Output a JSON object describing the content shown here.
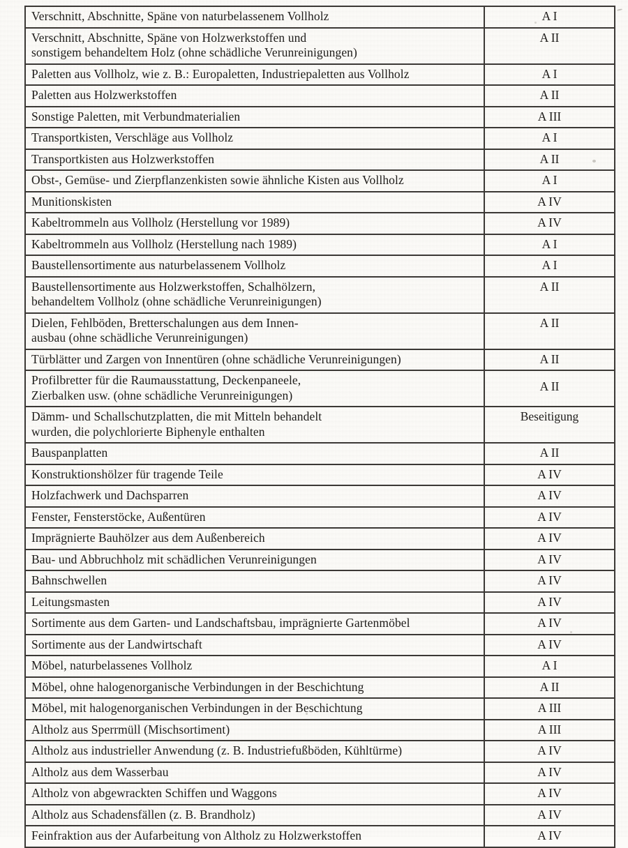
{
  "page": {
    "background": "#fcfbf8",
    "ink": "#1e1c1a",
    "border_color": "#3b3835"
  },
  "table": {
    "columns": [
      "description",
      "category"
    ],
    "rows": [
      {
        "text": "Verschnitt, Abschnitte, Späne von naturbelassenem Vollholz",
        "category": "A I"
      },
      {
        "text": "Verschnitt, Abschnitte, Späne von Holzwerkstoffen und\nsonstigem behandeltem Holz (ohne schädliche Verunreinigungen)",
        "category": "A II"
      },
      {
        "text": "Paletten aus Vollholz, wie z. B.: Europaletten, Industriepaletten aus Vollholz",
        "category": "A I"
      },
      {
        "text": "Paletten aus Holzwerkstoffen",
        "category": "A II"
      },
      {
        "text": "Sonstige Paletten, mit Verbundmaterialien",
        "category": "A III"
      },
      {
        "text": "Transportkisten, Verschläge aus Vollholz",
        "category": "A I"
      },
      {
        "text": "Transportkisten aus Holzwerkstoffen",
        "category": "A II"
      },
      {
        "text": "Obst-, Gemüse- und Zierpflanzenkisten sowie ähnliche Kisten aus Vollholz",
        "category": "A I"
      },
      {
        "text": "Munitionskisten",
        "category": "A IV"
      },
      {
        "text": "Kabeltrommeln aus Vollholz (Herstellung vor 1989)",
        "category": "A IV"
      },
      {
        "text": "Kabeltrommeln aus Vollholz (Herstellung nach 1989)",
        "category": "A I"
      },
      {
        "text": "Baustellensortimente aus naturbelassenem Vollholz",
        "category": "A I"
      },
      {
        "text": "Baustellensortimente aus Holzwerkstoffen, Schalhölzern,\nbehandeltem Vollholz (ohne schädliche Verunreinigungen)",
        "category": "A II"
      },
      {
        "text": "Dielen, Fehlböden, Bretterschalungen aus dem Innen-\nausbau (ohne schädliche Verunreinigungen)",
        "category": "A II"
      },
      {
        "text": "Türblätter und Zargen von Innentüren (ohne schädliche Verunreinigungen)",
        "category": "A II"
      },
      {
        "text": "Profilbretter für die Raumausstattung, Deckenpaneele,\nZierbalken usw. (ohne schädliche Verunreinigungen)",
        "category": "A II",
        "category_middle": true
      },
      {
        "text": "Dämm- und Schallschutzplatten, die mit Mitteln behandelt\nwurden, die polychlorierte Biphenyle enthalten",
        "category": "Beseitigung"
      },
      {
        "text": "Bauspanplatten",
        "category": "A II"
      },
      {
        "text": "Konstruktionshölzer für tragende Teile",
        "category": "A IV"
      },
      {
        "text": "Holzfachwerk und Dachsparren",
        "category": "A IV"
      },
      {
        "text": "Fenster, Fensterstöcke, Außentüren",
        "category": "A IV"
      },
      {
        "text": "Imprägnierte Bauhölzer aus dem Außenbereich",
        "category": "A IV"
      },
      {
        "text": "Bau- und Abbruchholz mit schädlichen Verunreinigungen",
        "category": "A IV"
      },
      {
        "text": "Bahnschwellen",
        "category": "A IV"
      },
      {
        "text": "Leitungsmasten",
        "category": "A IV"
      },
      {
        "text": "Sortimente aus dem Garten- und Landschaftsbau, imprägnierte Gartenmöbel",
        "category": "A IV"
      },
      {
        "text": "Sortimente aus der Landwirtschaft",
        "category": "A IV"
      },
      {
        "text": "Möbel, naturbelassenes Vollholz",
        "category": "A I"
      },
      {
        "text": "Möbel, ohne halogenorganische Verbindungen in der Beschichtung",
        "category": "A II"
      },
      {
        "text": "Möbel, mit halogenorganischen Verbindungen in der Beschichtung",
        "category": "A III"
      },
      {
        "text": "Altholz aus Sperrmüll (Mischsortiment)",
        "category": "A III"
      },
      {
        "text": "Altholz aus industrieller Anwendung (z. B. Industriefußböden, Kühltürme)",
        "category": "A IV"
      },
      {
        "text": "Altholz aus dem Wasserbau",
        "category": "A IV"
      },
      {
        "text": "Altholz von abgewrackten Schiffen und Waggons",
        "category": "A IV"
      },
      {
        "text": "Altholz aus Schadensfällen (z. B. Brandholz)",
        "category": "A IV"
      },
      {
        "text": "Feinfraktion aus der Aufarbeitung von Altholz zu Holzwerkstoffen",
        "category": "A IV"
      }
    ]
  }
}
